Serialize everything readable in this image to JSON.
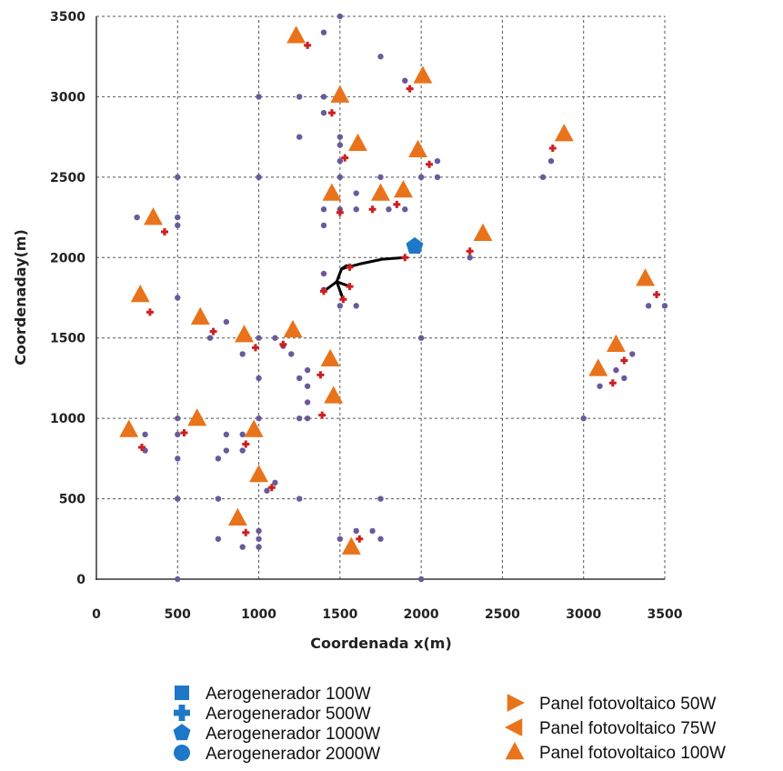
{
  "chart_data": {
    "type": "scatter",
    "xlabel": "Coordenada x(m)",
    "ylabel": "Coordenaday(m)",
    "xlim": [
      0,
      3500
    ],
    "ylim": [
      0,
      3500
    ],
    "x_ticks": [
      0,
      500,
      1000,
      1500,
      2000,
      2500,
      3000,
      3500
    ],
    "y_ticks": [
      0,
      500,
      1000,
      1500,
      2000,
      2500,
      3000,
      3500
    ],
    "grid": true,
    "legend_position": "bottom",
    "colors": {
      "aerogenerador": "#1f77c8",
      "panel": "#e8731a",
      "consumer": "#6a5a9c",
      "node": "#cc1f1f",
      "network": "#000000"
    },
    "legend": {
      "left": [
        {
          "label": "Aerogenerador 100W",
          "marker": "square"
        },
        {
          "label": "Aerogenerador 500W",
          "marker": "cross"
        },
        {
          "label": "Aerogenerador 1000W",
          "marker": "pentagon"
        },
        {
          "label": "Aerogenerador 2000W",
          "marker": "circle"
        }
      ],
      "right": [
        {
          "label": "Panel fotovoltaico 50W",
          "marker": "triangle-right"
        },
        {
          "label": "Panel fotovoltaico 75W",
          "marker": "triangle-left"
        },
        {
          "label": "Panel fotovoltaico 100W",
          "marker": "triangle-up"
        }
      ]
    },
    "series": [
      {
        "role": "consumer",
        "points": [
          [
            1500,
            3500
          ],
          [
            1400,
            3400
          ],
          [
            1250,
            3000
          ],
          [
            1400,
            3000
          ],
          [
            1750,
            3250
          ],
          [
            1900,
            3100
          ],
          [
            1000,
            3000
          ],
          [
            1400,
            2900
          ],
          [
            1250,
            2750
          ],
          [
            1500,
            2750
          ],
          [
            1500,
            2700
          ],
          [
            1500,
            2600
          ],
          [
            2800,
            2600
          ],
          [
            2750,
            2500
          ],
          [
            2100,
            2600
          ],
          [
            2100,
            2500
          ],
          [
            1750,
            2500
          ],
          [
            2000,
            2500
          ],
          [
            500,
            2500
          ],
          [
            1000,
            2500
          ],
          [
            1500,
            2500
          ],
          [
            1600,
            2400
          ],
          [
            1400,
            2300
          ],
          [
            1500,
            2300
          ],
          [
            1600,
            2300
          ],
          [
            1800,
            2300
          ],
          [
            1900,
            2300
          ],
          [
            1400,
            2200
          ],
          [
            250,
            2250
          ],
          [
            500,
            2250
          ],
          [
            500,
            2200
          ],
          [
            2300,
            2000
          ],
          [
            1400,
            1900
          ],
          [
            1400,
            1800
          ],
          [
            1600,
            1700
          ],
          [
            1500,
            1700
          ],
          [
            500,
            1750
          ],
          [
            800,
            1600
          ],
          [
            3400,
            1700
          ],
          [
            3500,
            1700
          ],
          [
            700,
            1500
          ],
          [
            1000,
            1500
          ],
          [
            1100,
            1500
          ],
          [
            2000,
            1500
          ],
          [
            1150,
            1450
          ],
          [
            1200,
            1400
          ],
          [
            900,
            1400
          ],
          [
            1250,
            1250
          ],
          [
            1000,
            1250
          ],
          [
            1300,
            1300
          ],
          [
            1300,
            1200
          ],
          [
            1300,
            1100
          ],
          [
            1300,
            1000
          ],
          [
            1250,
            1000
          ],
          [
            1000,
            1000
          ],
          [
            3100,
            1200
          ],
          [
            3200,
            1300
          ],
          [
            3250,
            1250
          ],
          [
            3300,
            1400
          ],
          [
            500,
            1000
          ],
          [
            500,
            900
          ],
          [
            800,
            900
          ],
          [
            900,
            900
          ],
          [
            300,
            900
          ],
          [
            300,
            800
          ],
          [
            900,
            800
          ],
          [
            800,
            800
          ],
          [
            750,
            750
          ],
          [
            500,
            750
          ],
          [
            1100,
            600
          ],
          [
            1050,
            550
          ],
          [
            1250,
            500
          ],
          [
            750,
            500
          ],
          [
            500,
            500
          ],
          [
            1750,
            500
          ],
          [
            1000,
            300
          ],
          [
            1600,
            300
          ],
          [
            1700,
            300
          ],
          [
            1750,
            250
          ],
          [
            750,
            250
          ],
          [
            1000,
            250
          ],
          [
            1500,
            250
          ],
          [
            900,
            200
          ],
          [
            1000,
            200
          ],
          [
            500,
            0
          ],
          [
            2000,
            0
          ],
          [
            3000,
            1000
          ]
        ]
      },
      {
        "role": "node",
        "points": [
          [
            1300,
            3320
          ],
          [
            1450,
            2900
          ],
          [
            1930,
            3050
          ],
          [
            2810,
            2680
          ],
          [
            1530,
            2620
          ],
          [
            2050,
            2580
          ],
          [
            1500,
            2280
          ],
          [
            1700,
            2300
          ],
          [
            1850,
            2330
          ],
          [
            420,
            2160
          ],
          [
            2300,
            2040
          ],
          [
            1900,
            2000
          ],
          [
            1560,
            1940
          ],
          [
            1400,
            1790
          ],
          [
            1560,
            1820
          ],
          [
            1520,
            1740
          ],
          [
            330,
            1660
          ],
          [
            3450,
            1770
          ],
          [
            720,
            1540
          ],
          [
            980,
            1440
          ],
          [
            1150,
            1460
          ],
          [
            3250,
            1360
          ],
          [
            1380,
            1270
          ],
          [
            3180,
            1220
          ],
          [
            1390,
            1020
          ],
          [
            540,
            910
          ],
          [
            280,
            820
          ],
          [
            920,
            840
          ],
          [
            1080,
            570
          ],
          [
            920,
            290
          ],
          [
            1620,
            250
          ]
        ]
      },
      {
        "role": "panel-100W",
        "points": [
          [
            1230,
            3380
          ],
          [
            2010,
            3130
          ],
          [
            1500,
            3010
          ],
          [
            1610,
            2710
          ],
          [
            1980,
            2670
          ],
          [
            2880,
            2770
          ],
          [
            1450,
            2400
          ],
          [
            1750,
            2400
          ],
          [
            1890,
            2420
          ],
          [
            350,
            2250
          ],
          [
            2380,
            2150
          ],
          [
            270,
            1770
          ],
          [
            3380,
            1870
          ],
          [
            640,
            1630
          ],
          [
            910,
            1520
          ],
          [
            1210,
            1550
          ],
          [
            3200,
            1460
          ],
          [
            1440,
            1370
          ],
          [
            3090,
            1310
          ],
          [
            1460,
            1140
          ],
          [
            620,
            1000
          ],
          [
            970,
            930
          ],
          [
            200,
            930
          ],
          [
            1000,
            650
          ],
          [
            870,
            380
          ],
          [
            1570,
            200
          ]
        ]
      },
      {
        "role": "aerogenerador-1000W",
        "points": [
          [
            1960,
            2070
          ]
        ]
      },
      {
        "role": "network",
        "paths": [
          [
            [
              1900,
              2000
            ],
            [
              1760,
              1990
            ],
            [
              1620,
              1960
            ],
            [
              1510,
              1930
            ],
            [
              1480,
              1850
            ],
            [
              1400,
              1790
            ]
          ],
          [
            [
              1480,
              1850
            ],
            [
              1560,
              1820
            ]
          ],
          [
            [
              1480,
              1850
            ],
            [
              1520,
              1740
            ]
          ],
          [
            [
              1510,
              1930
            ],
            [
              1540,
              1950
            ],
            [
              1560,
              1940
            ]
          ]
        ]
      }
    ]
  }
}
